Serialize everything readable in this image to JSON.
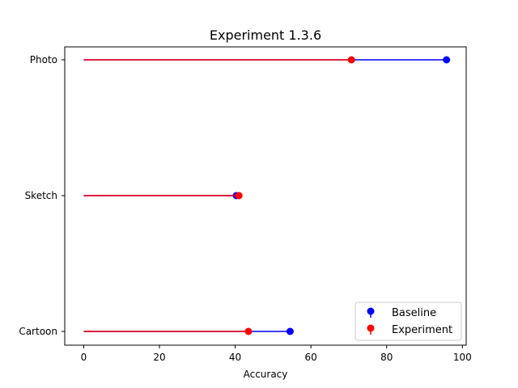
{
  "chart_data": {
    "type": "lollipop",
    "title": "Experiment 1.3.6",
    "xlabel": "Accuracy",
    "ylabel": "",
    "xlim": [
      -5,
      101
    ],
    "xticks": [
      0,
      20,
      40,
      60,
      80,
      100
    ],
    "categories": [
      "Photo",
      "Sketch",
      "Cartoon"
    ],
    "series": [
      {
        "name": "Baseline",
        "color": "#0000ff",
        "values": [
          95.8,
          40.3,
          54.5
        ]
      },
      {
        "name": "Experiment",
        "color": "#ff0000",
        "values": [
          70.7,
          41.0,
          43.5
        ]
      }
    ],
    "legend_position": "lower right",
    "grid": false
  }
}
